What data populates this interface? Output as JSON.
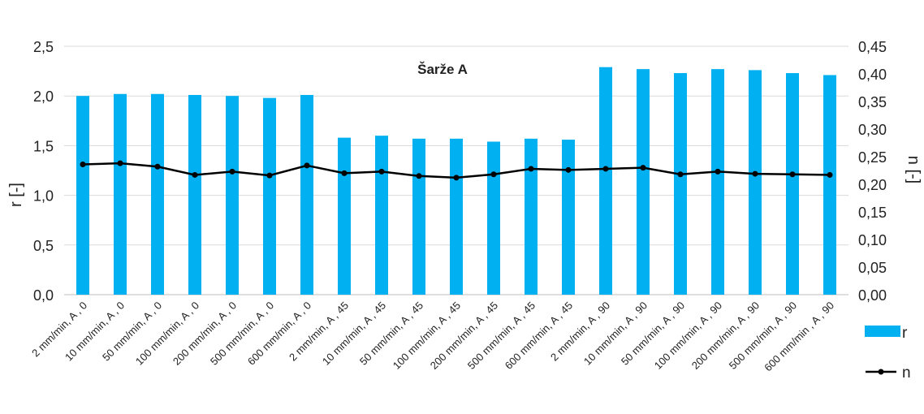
{
  "chart_data": {
    "type": "bar",
    "title": "Šarže A",
    "categories": [
      "2 mm/min, A , 0",
      "10 mm/min, A , 0",
      "50 mm/min, A , 0",
      "100 mm/min, A , 0",
      "200 mm/min, A , 0",
      "500 mm/min, A , 0",
      "600 mm/min, A , 0",
      "2 mm/min, A , 45",
      "10 mm/min, A , 45",
      "50 mm/min, A , 45",
      "100 mm/min, A , 45",
      "200 mm/min, A , 45",
      "500 mm/min, A , 45",
      "600 mm/min, A , 45",
      "2 mm/min, A , 90",
      "10 mm/min, A , 90",
      "50 mm/min, A , 90",
      "100 mm/min, A , 90",
      "200 mm/min, A , 90",
      "500 mm/min, A , 90",
      "600 mm/min , A , 90"
    ],
    "series": [
      {
        "name": "r",
        "type": "bar",
        "axis": "left",
        "color": "#00b0f0",
        "values": [
          2.0,
          2.02,
          2.02,
          2.01,
          2.0,
          1.98,
          2.01,
          1.58,
          1.6,
          1.57,
          1.57,
          1.54,
          1.57,
          1.56,
          2.29,
          2.27,
          2.23,
          2.27,
          2.26,
          2.23,
          2.21
        ]
      },
      {
        "name": "n",
        "type": "line",
        "axis": "right",
        "color": "#000000",
        "values": [
          0.236,
          0.238,
          0.232,
          0.217,
          0.223,
          0.216,
          0.234,
          0.22,
          0.223,
          0.215,
          0.212,
          0.218,
          0.228,
          0.226,
          0.228,
          0.23,
          0.218,
          0.223,
          0.219,
          0.218,
          0.217
        ]
      }
    ],
    "ylabel": "r [-]",
    "y2label": "n [-]",
    "ylim": [
      0,
      2.5
    ],
    "y2lim": [
      0,
      0.45
    ],
    "yticks": [
      "0,0",
      "0,5",
      "1,0",
      "1,5",
      "2,0",
      "2,5"
    ],
    "y2ticks": [
      "0,00",
      "0,05",
      "0,10",
      "0,15",
      "0,20",
      "0,25",
      "0,30",
      "0,35",
      "0,40",
      "0,45"
    ],
    "grid": true,
    "legend": "right"
  }
}
